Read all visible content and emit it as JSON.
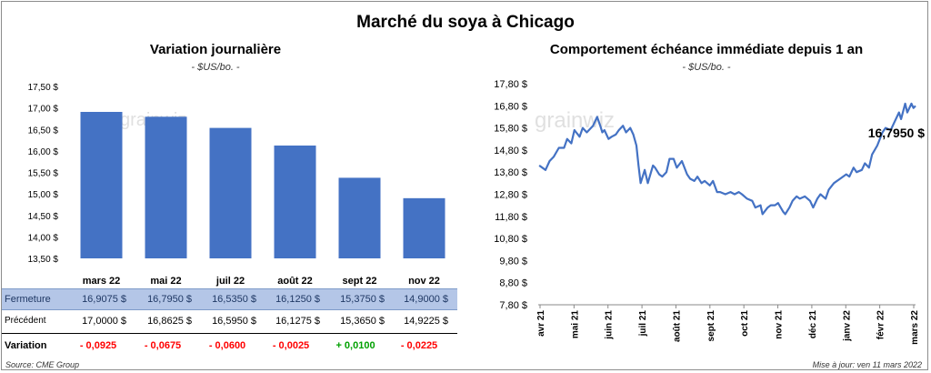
{
  "main_title": "Marché du soya à Chicago",
  "left_panel": {
    "title": "Variation  journalière",
    "subtitle": "- $US/bo. -"
  },
  "right_panel": {
    "title": "Comportement  échéance immédiate depuis 1 an",
    "subtitle": "- $US/bo. -",
    "last_value_label": "16,7950 $"
  },
  "watermark": "grainwiz",
  "table": {
    "rows": [
      {
        "label": "Fermeture",
        "values": [
          "16,9075  $",
          "16,7950  $",
          "16,5350  $",
          "16,1250  $",
          "15,3750  $",
          "14,9000  $"
        ]
      },
      {
        "label": "Précédent",
        "values": [
          "17,0000  $",
          "16,8625  $",
          "16,5950  $",
          "16,1275  $",
          "15,3650  $",
          "14,9225  $"
        ]
      },
      {
        "label": "Variation",
        "values": [
          "- 0,0925",
          "- 0,0675",
          "- 0,0600",
          "- 0,0025",
          "+ 0,0100",
          "- 0,0225"
        ]
      }
    ]
  },
  "source": "Source: CME Group",
  "updated": "Mise à jour: ven 11 mars 2022",
  "colors": {
    "bar": "#4472c4",
    "line": "#4472c4",
    "fermeture_bg": "#b4c6e7",
    "negative": "#ff0000",
    "positive": "#00a000"
  },
  "chart_data": [
    {
      "type": "bar",
      "title": "Variation  journalière",
      "subtitle": "- $US/bo. -",
      "categories": [
        "mars 22",
        "mai 22",
        "juil 22",
        "août 22",
        "sept 22",
        "nov 22"
      ],
      "values": [
        16.9075,
        16.795,
        16.535,
        16.125,
        15.375,
        14.9
      ],
      "ylim": [
        13.5,
        17.5
      ],
      "yticks": [
        "13,50 $",
        "14,00 $",
        "14,50 $",
        "15,00 $",
        "15,50 $",
        "16,00 $",
        "16,50 $",
        "17,00 $",
        "17,50 $"
      ],
      "grid": false
    },
    {
      "type": "line",
      "title": "Comportement  échéance immédiate depuis 1 an",
      "subtitle": "- $US/bo. -",
      "ylim": [
        7.8,
        17.8
      ],
      "yticks": [
        "7,80 $",
        "8,80 $",
        "9,80 $",
        "10,80 $",
        "11,80 $",
        "12,80 $",
        "13,80 $",
        "14,80 $",
        "15,80 $",
        "16,80 $",
        "17,80 $"
      ],
      "xticks": [
        "avr 21",
        "mai 21",
        "juin 21",
        "juil 21",
        "août 21",
        "sept 21",
        "oct 21",
        "nov 21",
        "déc 21",
        "janv 22",
        "févr 22",
        "mars 22"
      ],
      "xrange": [
        "2021-03-11",
        "2022-03-11"
      ],
      "last_value": 16.795,
      "points": [
        [
          "2021-03-12",
          14.1
        ],
        [
          "2021-03-15",
          14.0
        ],
        [
          "2021-03-18",
          13.9
        ],
        [
          "2021-03-22",
          14.3
        ],
        [
          "2021-03-26",
          14.5
        ],
        [
          "2021-03-31",
          14.9
        ],
        [
          "2021-04-05",
          14.9
        ],
        [
          "2021-04-08",
          15.3
        ],
        [
          "2021-04-12",
          15.1
        ],
        [
          "2021-04-15",
          15.7
        ],
        [
          "2021-04-20",
          15.4
        ],
        [
          "2021-04-23",
          15.8
        ],
        [
          "2021-04-27",
          15.6
        ],
        [
          "2021-05-03",
          15.9
        ],
        [
          "2021-05-07",
          16.3
        ],
        [
          "2021-05-10",
          15.9
        ],
        [
          "2021-05-12",
          15.6
        ],
        [
          "2021-05-14",
          15.7
        ],
        [
          "2021-05-18",
          15.3
        ],
        [
          "2021-05-21",
          15.4
        ],
        [
          "2021-05-25",
          15.5
        ],
        [
          "2021-05-28",
          15.7
        ],
        [
          "2021-06-01",
          15.9
        ],
        [
          "2021-06-04",
          15.6
        ],
        [
          "2021-06-08",
          15.8
        ],
        [
          "2021-06-11",
          15.5
        ],
        [
          "2021-06-14",
          15.0
        ],
        [
          "2021-06-16",
          14.1
        ],
        [
          "2021-06-18",
          13.3
        ],
        [
          "2021-06-22",
          13.9
        ],
        [
          "2021-06-25",
          13.3
        ],
        [
          "2021-06-30",
          14.1
        ],
        [
          "2021-07-02",
          14.0
        ],
        [
          "2021-07-06",
          13.7
        ],
        [
          "2021-07-09",
          13.6
        ],
        [
          "2021-07-13",
          13.8
        ],
        [
          "2021-07-16",
          14.4
        ],
        [
          "2021-07-20",
          14.4
        ],
        [
          "2021-07-23",
          14.0
        ],
        [
          "2021-07-28",
          14.3
        ],
        [
          "2021-08-02",
          13.7
        ],
        [
          "2021-08-05",
          13.5
        ],
        [
          "2021-08-09",
          13.4
        ],
        [
          "2021-08-12",
          13.6
        ],
        [
          "2021-08-16",
          13.3
        ],
        [
          "2021-08-19",
          13.4
        ],
        [
          "2021-08-24",
          13.2
        ],
        [
          "2021-08-27",
          13.4
        ],
        [
          "2021-08-31",
          12.9
        ],
        [
          "2021-09-03",
          12.9
        ],
        [
          "2021-09-08",
          12.8
        ],
        [
          "2021-09-13",
          12.9
        ],
        [
          "2021-09-17",
          12.8
        ],
        [
          "2021-09-21",
          12.9
        ],
        [
          "2021-09-24",
          12.8
        ],
        [
          "2021-09-29",
          12.6
        ],
        [
          "2021-10-04",
          12.5
        ],
        [
          "2021-10-07",
          12.2
        ],
        [
          "2021-10-12",
          12.3
        ],
        [
          "2021-10-14",
          11.9
        ],
        [
          "2021-10-19",
          12.2
        ],
        [
          "2021-10-22",
          12.3
        ],
        [
          "2021-10-26",
          12.3
        ],
        [
          "2021-10-29",
          12.4
        ],
        [
          "2021-11-03",
          12.0
        ],
        [
          "2021-11-05",
          11.9
        ],
        [
          "2021-11-09",
          12.2
        ],
        [
          "2021-11-12",
          12.5
        ],
        [
          "2021-11-16",
          12.7
        ],
        [
          "2021-11-19",
          12.6
        ],
        [
          "2021-11-24",
          12.7
        ],
        [
          "2021-11-29",
          12.5
        ],
        [
          "2021-12-02",
          12.2
        ],
        [
          "2021-12-06",
          12.6
        ],
        [
          "2021-12-09",
          12.8
        ],
        [
          "2021-12-14",
          12.6
        ],
        [
          "2021-12-17",
          13.0
        ],
        [
          "2021-12-22",
          13.3
        ],
        [
          "2021-12-28",
          13.5
        ],
        [
          "2022-01-03",
          13.7
        ],
        [
          "2022-01-06",
          13.6
        ],
        [
          "2022-01-10",
          14.0
        ],
        [
          "2022-01-13",
          13.8
        ],
        [
          "2022-01-18",
          13.9
        ],
        [
          "2022-01-21",
          14.2
        ],
        [
          "2022-01-25",
          14.0
        ],
        [
          "2022-01-28",
          14.6
        ],
        [
          "2022-02-02",
          15.0
        ],
        [
          "2022-02-07",
          15.6
        ],
        [
          "2022-02-10",
          15.8
        ],
        [
          "2022-02-15",
          15.7
        ],
        [
          "2022-02-18",
          16.0
        ],
        [
          "2022-02-23",
          16.5
        ],
        [
          "2022-02-25",
          16.2
        ],
        [
          "2022-03-01",
          16.9
        ],
        [
          "2022-03-03",
          16.5
        ],
        [
          "2022-03-07",
          16.9
        ],
        [
          "2022-03-09",
          16.7
        ],
        [
          "2022-03-11",
          16.795
        ]
      ]
    }
  ]
}
